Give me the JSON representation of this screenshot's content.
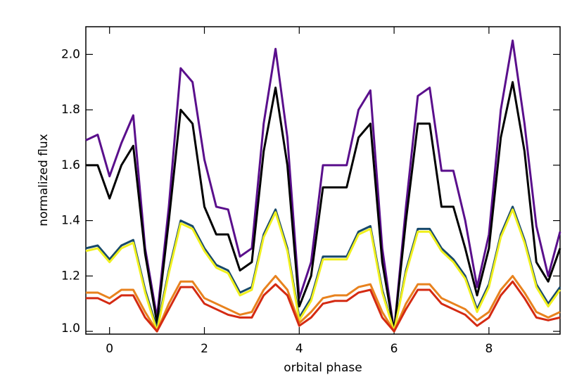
{
  "chart_data": {
    "type": "line",
    "xlabel": "orbital phase",
    "ylabel": "normalized flux",
    "x": [
      -0.5,
      -0.25,
      0,
      0.25,
      0.5,
      0.75,
      1,
      1.25,
      1.5,
      1.75,
      2,
      2.25,
      2.5,
      2.75,
      3,
      3.25,
      3.5,
      3.75,
      4,
      4.25,
      4.5,
      4.75,
      5,
      5.25,
      5.5,
      5.75,
      6,
      6.25,
      6.5,
      6.75,
      7,
      7.25,
      7.5,
      7.75,
      8,
      8.25,
      8.5,
      8.75,
      9,
      9.25,
      9.5
    ],
    "series": [
      {
        "color": "#5a0f8c",
        "values": [
          1.69,
          1.71,
          1.56,
          1.68,
          1.78,
          1.3,
          1.05,
          1.45,
          1.95,
          1.9,
          1.62,
          1.45,
          1.44,
          1.27,
          1.3,
          1.75,
          2.02,
          1.7,
          1.12,
          1.25,
          1.6,
          1.6,
          1.6,
          1.8,
          1.87,
          1.3,
          1.0,
          1.45,
          1.85,
          1.88,
          1.58,
          1.58,
          1.4,
          1.16,
          1.35,
          1.8,
          2.05,
          1.75,
          1.38,
          1.2,
          1.36
        ]
      },
      {
        "color": "#000000",
        "values": [
          1.6,
          1.6,
          1.48,
          1.6,
          1.67,
          1.28,
          1.03,
          1.4,
          1.8,
          1.75,
          1.45,
          1.35,
          1.35,
          1.22,
          1.25,
          1.65,
          1.88,
          1.6,
          1.09,
          1.2,
          1.52,
          1.52,
          1.52,
          1.7,
          1.75,
          1.25,
          1.0,
          1.4,
          1.75,
          1.75,
          1.45,
          1.45,
          1.3,
          1.13,
          1.3,
          1.7,
          1.9,
          1.65,
          1.25,
          1.18,
          1.3
        ]
      },
      {
        "color": "#17496a",
        "values": [
          1.3,
          1.31,
          1.26,
          1.31,
          1.33,
          1.15,
          1.01,
          1.22,
          1.4,
          1.38,
          1.3,
          1.24,
          1.22,
          1.14,
          1.16,
          1.35,
          1.44,
          1.3,
          1.05,
          1.12,
          1.27,
          1.27,
          1.27,
          1.36,
          1.38,
          1.15,
          1.0,
          1.22,
          1.37,
          1.37,
          1.3,
          1.26,
          1.2,
          1.08,
          1.17,
          1.35,
          1.45,
          1.33,
          1.17,
          1.1,
          1.16
        ]
      },
      {
        "color": "#f0f01e",
        "values": [
          1.29,
          1.3,
          1.25,
          1.3,
          1.32,
          1.14,
          1.0,
          1.21,
          1.39,
          1.37,
          1.29,
          1.23,
          1.21,
          1.13,
          1.15,
          1.34,
          1.43,
          1.29,
          1.04,
          1.11,
          1.26,
          1.26,
          1.26,
          1.35,
          1.37,
          1.14,
          1.0,
          1.21,
          1.36,
          1.36,
          1.29,
          1.25,
          1.19,
          1.07,
          1.16,
          1.34,
          1.44,
          1.32,
          1.16,
          1.09,
          1.15
        ]
      },
      {
        "color": "#e8821e",
        "values": [
          1.14,
          1.14,
          1.12,
          1.15,
          1.15,
          1.07,
          1.0,
          1.1,
          1.18,
          1.18,
          1.12,
          1.1,
          1.08,
          1.06,
          1.07,
          1.15,
          1.2,
          1.15,
          1.03,
          1.07,
          1.12,
          1.13,
          1.13,
          1.16,
          1.17,
          1.07,
          1.0,
          1.1,
          1.17,
          1.17,
          1.12,
          1.1,
          1.08,
          1.04,
          1.07,
          1.15,
          1.2,
          1.14,
          1.07,
          1.05,
          1.07
        ]
      },
      {
        "color": "#d42a12",
        "values": [
          1.12,
          1.12,
          1.1,
          1.13,
          1.13,
          1.05,
          1.0,
          1.08,
          1.16,
          1.16,
          1.1,
          1.08,
          1.06,
          1.05,
          1.05,
          1.13,
          1.17,
          1.13,
          1.02,
          1.05,
          1.1,
          1.11,
          1.11,
          1.14,
          1.15,
          1.05,
          1.0,
          1.08,
          1.15,
          1.15,
          1.1,
          1.08,
          1.06,
          1.02,
          1.05,
          1.13,
          1.18,
          1.12,
          1.05,
          1.04,
          1.05
        ]
      }
    ],
    "xlim": [
      -0.5,
      9.5
    ],
    "xticks": [
      0,
      2,
      4,
      6,
      8
    ],
    "ylim": [
      0.99,
      2.1
    ],
    "yticks": [
      {
        "value": 1,
        "label": "1.0"
      },
      1.2,
      1.4,
      1.6,
      1.8,
      {
        "value": 2,
        "label": "2.0"
      }
    ],
    "grid": false
  }
}
